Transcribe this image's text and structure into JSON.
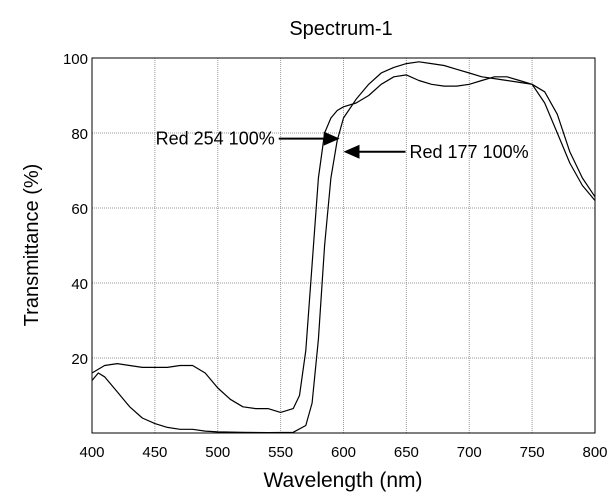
{
  "chart_data": {
    "type": "line",
    "title": "Spectrum-1",
    "xlabel": "Wavelength (nm)",
    "ylabel": "Transmittance (%)",
    "xlim": [
      400,
      800
    ],
    "ylim": [
      0,
      100
    ],
    "x_ticks": [
      400,
      450,
      500,
      550,
      600,
      650,
      700,
      750,
      800
    ],
    "y_ticks": [
      20,
      40,
      60,
      80,
      100
    ],
    "grid": true,
    "series": [
      {
        "name": "Red 254 100%",
        "x": [
          400,
          410,
          420,
          430,
          440,
          450,
          460,
          470,
          480,
          490,
          500,
          510,
          520,
          530,
          540,
          550,
          560,
          565,
          570,
          575,
          580,
          585,
          590,
          595,
          600,
          610,
          620,
          630,
          640,
          650,
          660,
          670,
          680,
          690,
          700,
          710,
          720,
          730,
          740,
          750,
          760,
          770,
          780,
          790,
          800
        ],
        "y": [
          16,
          18,
          18.5,
          18,
          17.5,
          17.5,
          17.5,
          18,
          18,
          16,
          12,
          9,
          7,
          6.5,
          6.5,
          5.5,
          6.5,
          10,
          22,
          45,
          68,
          80,
          84,
          86,
          87,
          88,
          90,
          93,
          95,
          95.5,
          94,
          93,
          92.5,
          92.5,
          93,
          94,
          95,
          95,
          94,
          93,
          88,
          80,
          72,
          66,
          62
        ]
      },
      {
        "name": "Red 177 100%",
        "x": [
          400,
          405,
          410,
          420,
          430,
          440,
          450,
          460,
          470,
          480,
          490,
          500,
          520,
          540,
          560,
          570,
          575,
          580,
          585,
          590,
          595,
          600,
          610,
          620,
          630,
          640,
          650,
          660,
          670,
          680,
          690,
          700,
          710,
          720,
          730,
          740,
          750,
          760,
          770,
          780,
          790,
          800
        ],
        "y": [
          14,
          16,
          15,
          11,
          7,
          4,
          2.5,
          1.5,
          1,
          1,
          0.5,
          0.3,
          0.2,
          0.1,
          0.2,
          2,
          8,
          25,
          50,
          68,
          78,
          84,
          89,
          93,
          96,
          97.5,
          98.5,
          99,
          98.5,
          98,
          97,
          96,
          95,
          94.5,
          94,
          93.5,
          93,
          91,
          85,
          75,
          68,
          63
        ]
      }
    ],
    "annotations": [
      {
        "text": "Red  254  100%",
        "x": 597,
        "y": 78.5,
        "arrow": "right"
      },
      {
        "text": "Red  177  100%",
        "x": 600,
        "y": 75,
        "arrow": "left"
      }
    ],
    "colors": {
      "line": "#000000",
      "grid": "#9a9a9a",
      "frame": "#000000",
      "ylabel": "#9a9a9a"
    }
  }
}
